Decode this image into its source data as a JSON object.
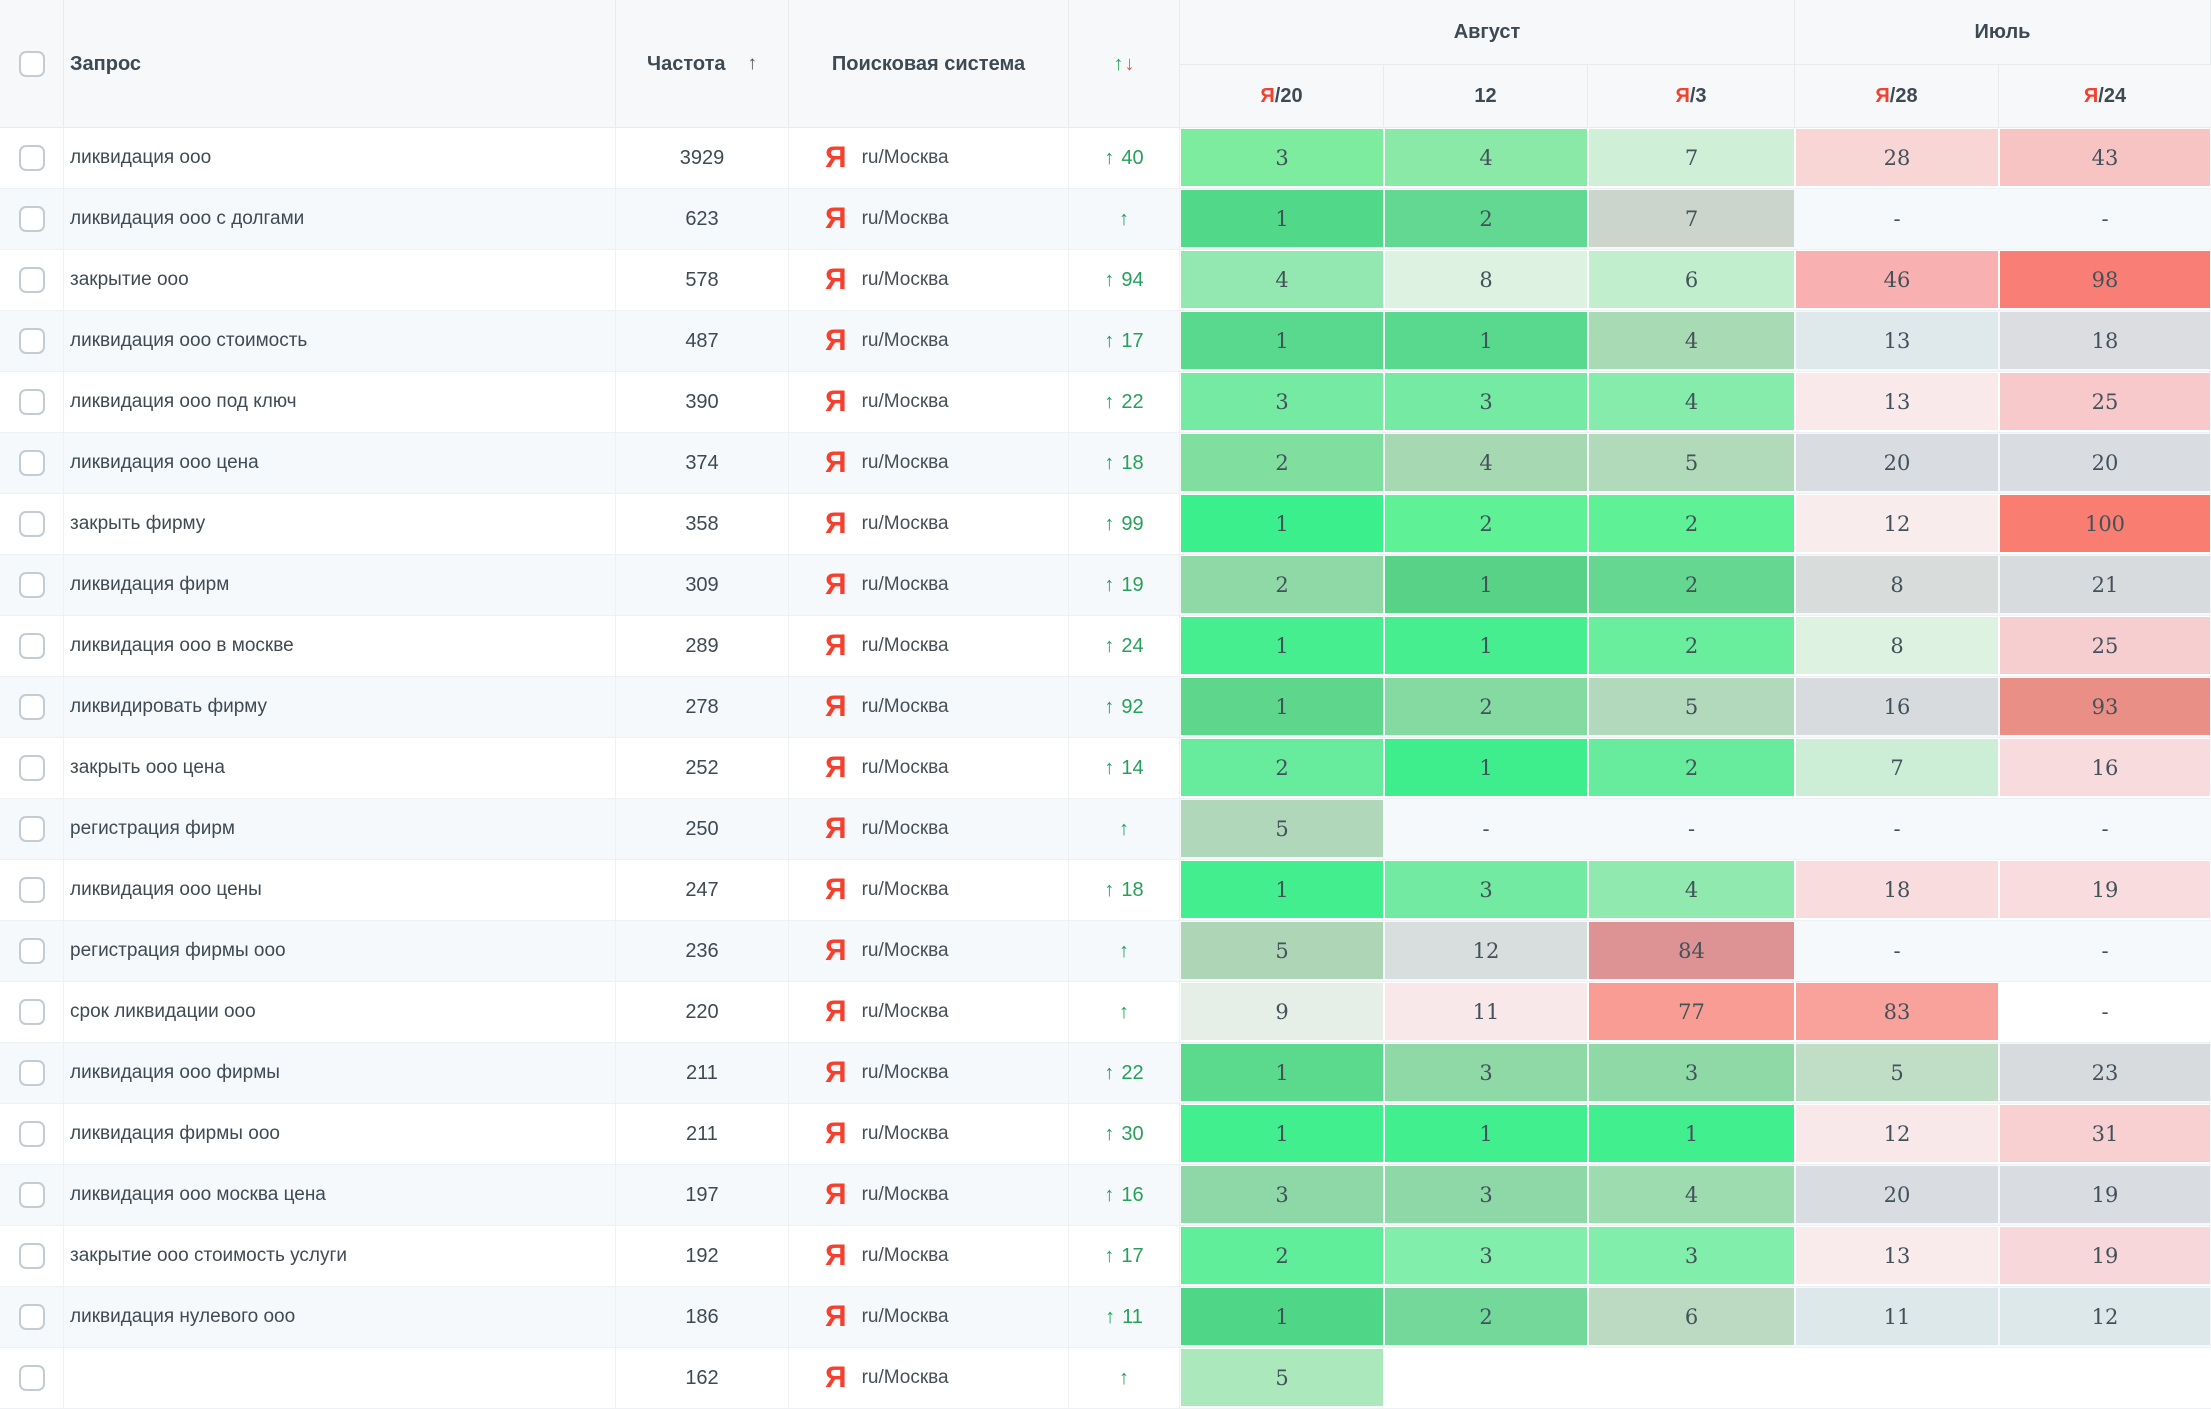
{
  "header": {
    "query_label": "Запрос",
    "frequency_label": "Частота",
    "sort_icon": "↑",
    "search_engine_label": "Поисковая система",
    "change_up_icon": "↑",
    "change_down_icon": "↓",
    "groups": [
      {
        "label": "Август"
      },
      {
        "label": "Июль"
      }
    ],
    "date_columns": [
      {
        "prefix": "Я",
        "label": "/20"
      },
      {
        "prefix": "",
        "label": "12"
      },
      {
        "prefix": "Я",
        "label": "/3"
      },
      {
        "prefix": "Я",
        "label": "/28"
      },
      {
        "prefix": "Я",
        "label": "/24"
      }
    ]
  },
  "engine": {
    "icon": "Я",
    "label": "ru/Москва"
  },
  "icons": {
    "up_arrow": "↑",
    "down_arrow": "↓"
  },
  "colors": {
    "yandex_red": "#f5402e",
    "change_green": "#1ba257",
    "header_bg": "#f7f8f9",
    "even_row_bg": "#f5f9fc",
    "grid_line": "#edf1f4",
    "best_green": "#41ef8f",
    "worst_red": "#f97d71",
    "neutral_gray": "#d9dce0"
  },
  "rows": [
    {
      "query": "ликвидация ооо",
      "frequency": "3929",
      "change": "40",
      "positions": [
        {
          "v": "3",
          "bg": "#7dec9f"
        },
        {
          "v": "4",
          "bg": "#8ae9a6"
        },
        {
          "v": "7",
          "bg": "#cff0d7"
        },
        {
          "v": "28",
          "bg": "#f8d6d6"
        },
        {
          "v": "43",
          "bg": "#f7c3c3"
        }
      ]
    },
    {
      "query": "ликвидация ооо с долгами",
      "frequency": "623",
      "change": "",
      "positions": [
        {
          "v": "1",
          "bg": "#51d889"
        },
        {
          "v": "2",
          "bg": "#62d892"
        },
        {
          "v": "7",
          "bg": "#ccd5cc"
        },
        {
          "v": "-",
          "bg": ""
        },
        {
          "v": "-",
          "bg": ""
        }
      ]
    },
    {
      "query": "закрытие ооо",
      "frequency": "578",
      "change": "94",
      "positions": [
        {
          "v": "4",
          "bg": "#93e7b0"
        },
        {
          "v": "8",
          "bg": "#ddf2e0"
        },
        {
          "v": "6",
          "bg": "#c1eecd"
        },
        {
          "v": "46",
          "bg": "#f8b0b0"
        },
        {
          "v": "98",
          "bg": "#f87e76"
        }
      ]
    },
    {
      "query": "ликвидация ооо стоимость",
      "frequency": "487",
      "change": "17",
      "positions": [
        {
          "v": "1",
          "bg": "#58d98d"
        },
        {
          "v": "1",
          "bg": "#58d98d"
        },
        {
          "v": "4",
          "bg": "#a8dab3"
        },
        {
          "v": "13",
          "bg": "#dfe9ec"
        },
        {
          "v": "18",
          "bg": "#dcdde1"
        }
      ]
    },
    {
      "query": "ликвидация ооо под ключ",
      "frequency": "390",
      "change": "22",
      "positions": [
        {
          "v": "3",
          "bg": "#74eaa2"
        },
        {
          "v": "3",
          "bg": "#74eaa2"
        },
        {
          "v": "4",
          "bg": "#86ecab"
        },
        {
          "v": "13",
          "bg": "#fae9ea"
        },
        {
          "v": "25",
          "bg": "#f8c9ca"
        }
      ]
    },
    {
      "query": "ликвидация ооо цена",
      "frequency": "374",
      "change": "18",
      "positions": [
        {
          "v": "2",
          "bg": "#80df9f"
        },
        {
          "v": "4",
          "bg": "#a6d8b1"
        },
        {
          "v": "5",
          "bg": "#b0dab9"
        },
        {
          "v": "20",
          "bg": "#d9dce0"
        },
        {
          "v": "20",
          "bg": "#d9dce0"
        }
      ]
    },
    {
      "query": "закрыть фирму",
      "frequency": "358",
      "change": "99",
      "positions": [
        {
          "v": "1",
          "bg": "#3bef8c"
        },
        {
          "v": "2",
          "bg": "#5ff195"
        },
        {
          "v": "2",
          "bg": "#5ff195"
        },
        {
          "v": "12",
          "bg": "#f9eced"
        },
        {
          "v": "100",
          "bg": "#f97d71"
        }
      ]
    },
    {
      "query": "ликвидация фирм",
      "frequency": "309",
      "change": "19",
      "positions": [
        {
          "v": "2",
          "bg": "#8fd9a6"
        },
        {
          "v": "1",
          "bg": "#58d287"
        },
        {
          "v": "2",
          "bg": "#66d791"
        },
        {
          "v": "8",
          "bg": "#d8dcda"
        },
        {
          "v": "21",
          "bg": "#d8dbde"
        }
      ]
    },
    {
      "query": "ликвидация ооо в москве",
      "frequency": "289",
      "change": "24",
      "positions": [
        {
          "v": "1",
          "bg": "#46ee90"
        },
        {
          "v": "1",
          "bg": "#46ee90"
        },
        {
          "v": "2",
          "bg": "#68ee9d"
        },
        {
          "v": "8",
          "bg": "#def2e1"
        },
        {
          "v": "25",
          "bg": "#f7cecf"
        }
      ]
    },
    {
      "query": "ликвидировать фирму",
      "frequency": "278",
      "change": "92",
      "positions": [
        {
          "v": "1",
          "bg": "#5ed68c"
        },
        {
          "v": "2",
          "bg": "#85daa1"
        },
        {
          "v": "5",
          "bg": "#b2d9bb"
        },
        {
          "v": "16",
          "bg": "#d8dbde"
        },
        {
          "v": "93",
          "bg": "#e98f86"
        }
      ]
    },
    {
      "query": "закрыть ооо цена",
      "frequency": "252",
      "change": "14",
      "positions": [
        {
          "v": "2",
          "bg": "#67ec9e"
        },
        {
          "v": "1",
          "bg": "#3eee8c"
        },
        {
          "v": "2",
          "bg": "#67ec9e"
        },
        {
          "v": "7",
          "bg": "#cdeed6"
        },
        {
          "v": "16",
          "bg": "#f8dbdc"
        }
      ]
    },
    {
      "query": "регистрация фирм",
      "frequency": "250",
      "change": "",
      "positions": [
        {
          "v": "5",
          "bg": "#b0d7b9"
        },
        {
          "v": "-",
          "bg": ""
        },
        {
          "v": "-",
          "bg": ""
        },
        {
          "v": "-",
          "bg": ""
        },
        {
          "v": "-",
          "bg": ""
        }
      ]
    },
    {
      "query": "ликвидация ооо цены",
      "frequency": "247",
      "change": "18",
      "positions": [
        {
          "v": "1",
          "bg": "#43ee8e"
        },
        {
          "v": "3",
          "bg": "#72eaa1"
        },
        {
          "v": "4",
          "bg": "#90e9ae"
        },
        {
          "v": "18",
          "bg": "#f8dcde"
        },
        {
          "v": "19",
          "bg": "#f8dcde"
        }
      ]
    },
    {
      "query": "регистрация фирмы ооо",
      "frequency": "236",
      "change": "",
      "positions": [
        {
          "v": "5",
          "bg": "#add5b6"
        },
        {
          "v": "12",
          "bg": "#d8dddd"
        },
        {
          "v": "84",
          "bg": "#dd9293"
        },
        {
          "v": "-",
          "bg": ""
        },
        {
          "v": "-",
          "bg": ""
        }
      ]
    },
    {
      "query": "срок ликвидации ооо",
      "frequency": "220",
      "change": "",
      "positions": [
        {
          "v": "9",
          "bg": "#e5efe7"
        },
        {
          "v": "11",
          "bg": "#f8e8e9"
        },
        {
          "v": "77",
          "bg": "#f99c93"
        },
        {
          "v": "83",
          "bg": "#f9a19b"
        },
        {
          "v": "-",
          "bg": ""
        }
      ]
    },
    {
      "query": "ликвидация ооо фирмы",
      "frequency": "211",
      "change": "22",
      "positions": [
        {
          "v": "1",
          "bg": "#5bd98d"
        },
        {
          "v": "3",
          "bg": "#8fd9a7"
        },
        {
          "v": "3",
          "bg": "#8fd9a7"
        },
        {
          "v": "5",
          "bg": "#c0ddc6"
        },
        {
          "v": "23",
          "bg": "#d8dbde"
        }
      ]
    },
    {
      "query": "ликвидация фирмы ооо",
      "frequency": "211",
      "change": "30",
      "positions": [
        {
          "v": "1",
          "bg": "#41ef8f"
        },
        {
          "v": "1",
          "bg": "#41ef8f"
        },
        {
          "v": "1",
          "bg": "#41ef8f"
        },
        {
          "v": "12",
          "bg": "#f9e8ea"
        },
        {
          "v": "31",
          "bg": "#f8d0d2"
        }
      ]
    },
    {
      "query": "ликвидация ооо москва цена",
      "frequency": "197",
      "change": "16",
      "positions": [
        {
          "v": "3",
          "bg": "#8dd8a6"
        },
        {
          "v": "3",
          "bg": "#8dd8a6"
        },
        {
          "v": "4",
          "bg": "#9ddcaf"
        },
        {
          "v": "20",
          "bg": "#d9dce0"
        },
        {
          "v": "19",
          "bg": "#d9dce0"
        }
      ]
    },
    {
      "query": "закрытие ооо стоимость услуги",
      "frequency": "192",
      "change": "17",
      "positions": [
        {
          "v": "2",
          "bg": "#60ee9a"
        },
        {
          "v": "3",
          "bg": "#82eeab"
        },
        {
          "v": "3",
          "bg": "#82eeab"
        },
        {
          "v": "13",
          "bg": "#f9eaeb"
        },
        {
          "v": "19",
          "bg": "#f7d7d9"
        }
      ]
    },
    {
      "query": "ликвидация нулевого ооо",
      "frequency": "186",
      "change": "11",
      "positions": [
        {
          "v": "1",
          "bg": "#50d687"
        },
        {
          "v": "2",
          "bg": "#74d89b"
        },
        {
          "v": "6",
          "bg": "#bcd9c2"
        },
        {
          "v": "11",
          "bg": "#dde8ea"
        },
        {
          "v": "12",
          "bg": "#dde8ea"
        }
      ]
    },
    {
      "query": "",
      "frequency": "162",
      "change": "",
      "positions": [
        {
          "v": "5",
          "bg": "#abe9bc"
        },
        {
          "v": "",
          "bg": ""
        },
        {
          "v": "",
          "bg": ""
        },
        {
          "v": "",
          "bg": ""
        },
        {
          "v": "",
          "bg": ""
        }
      ]
    }
  ]
}
